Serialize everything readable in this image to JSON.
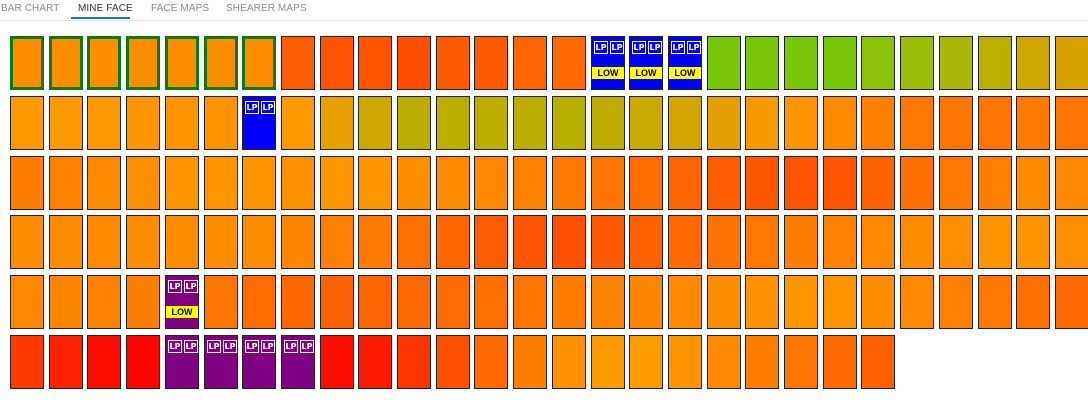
{
  "tabs": [
    {
      "label": "BAR CHART",
      "active": false
    },
    {
      "label": "MINE FACE",
      "active": true
    },
    {
      "label": "FACE MAPS",
      "active": false
    },
    {
      "label": "SHEARER MAPS",
      "active": false
    }
  ],
  "badges": {
    "lp": "LP",
    "low": "LOW"
  },
  "colors": {
    "selected_border": "#0a7a12",
    "blue_cell": "#0000ff",
    "purple_cell": "#7f0080",
    "low_badge": "#ffff00",
    "active_tab_underline": "#1a73c8"
  },
  "rows": [
    {
      "cells": [
        {
          "color": "#fe8d00",
          "selected": true
        },
        {
          "color": "#fe8d00",
          "selected": true
        },
        {
          "color": "#fe8d00",
          "selected": true
        },
        {
          "color": "#fe8d00",
          "selected": true
        },
        {
          "color": "#fe8d00",
          "selected": true
        },
        {
          "color": "#fe8d00",
          "selected": true
        },
        {
          "color": "#fe8d00",
          "selected": true
        },
        {
          "color": "#fe5c00"
        },
        {
          "color": "#fe5400"
        },
        {
          "color": "#fe5400"
        },
        {
          "color": "#fe4e00"
        },
        {
          "color": "#fe5a00"
        },
        {
          "color": "#fe5a00"
        },
        {
          "color": "#fe6400"
        },
        {
          "color": "#fe6a00"
        },
        {
          "color": "#0000ff",
          "status": "blue",
          "lp": true,
          "low": true
        },
        {
          "color": "#0000ff",
          "status": "blue",
          "lp": true,
          "low": true
        },
        {
          "color": "#0000ff",
          "status": "blue",
          "lp": true,
          "low": true
        },
        {
          "color": "#7ac70a"
        },
        {
          "color": "#7ac70a"
        },
        {
          "color": "#7ac70a"
        },
        {
          "color": "#7ac70a"
        },
        {
          "color": "#8cc20a"
        },
        {
          "color": "#9cbd0a"
        },
        {
          "color": "#aab70a"
        },
        {
          "color": "#bab000"
        },
        {
          "color": "#cca800"
        },
        {
          "color": "#d8a000"
        }
      ]
    },
    {
      "cells": [
        {
          "color": "#fe9a00"
        },
        {
          "color": "#fe9a00"
        },
        {
          "color": "#fe9800"
        },
        {
          "color": "#fe9600"
        },
        {
          "color": "#fe9400"
        },
        {
          "color": "#fe9400"
        },
        {
          "color": "#0000ff",
          "status": "blue",
          "lp": true
        },
        {
          "color": "#fe9a00"
        },
        {
          "color": "#e8a000"
        },
        {
          "color": "#cca800"
        },
        {
          "color": "#bcae00"
        },
        {
          "color": "#bcae00"
        },
        {
          "color": "#bcae00"
        },
        {
          "color": "#bcae00"
        },
        {
          "color": "#b8b000"
        },
        {
          "color": "#c0ac00"
        },
        {
          "color": "#c8aa00"
        },
        {
          "color": "#d4a400"
        },
        {
          "color": "#e4a000"
        },
        {
          "color": "#f49a00"
        },
        {
          "color": "#fe9400"
        },
        {
          "color": "#fe8a00"
        },
        {
          "color": "#fe8000"
        },
        {
          "color": "#fe7800"
        },
        {
          "color": "#fe7400"
        },
        {
          "color": "#fe7400"
        },
        {
          "color": "#fe7a00"
        },
        {
          "color": "#fe7400"
        }
      ]
    },
    {
      "cells": [
        {
          "color": "#fe7c00"
        },
        {
          "color": "#fe8200"
        },
        {
          "color": "#fe8a00"
        },
        {
          "color": "#fe9000"
        },
        {
          "color": "#fe9400"
        },
        {
          "color": "#fe9600"
        },
        {
          "color": "#fe9400"
        },
        {
          "color": "#fe9200"
        },
        {
          "color": "#fe9600"
        },
        {
          "color": "#fe9600"
        },
        {
          "color": "#fe8e00"
        },
        {
          "color": "#fe8a00"
        },
        {
          "color": "#fe8800"
        },
        {
          "color": "#fe8200"
        },
        {
          "color": "#fe7a00"
        },
        {
          "color": "#fe7400"
        },
        {
          "color": "#fe6c00"
        },
        {
          "color": "#fe6400"
        },
        {
          "color": "#fe5c00"
        },
        {
          "color": "#fe5600"
        },
        {
          "color": "#fe5400"
        },
        {
          "color": "#fe5400"
        },
        {
          "color": "#fe6200"
        },
        {
          "color": "#fe6e00"
        },
        {
          "color": "#fe7800"
        },
        {
          "color": "#fe8000"
        },
        {
          "color": "#fe8a00"
        },
        {
          "color": "#fe8800"
        }
      ]
    },
    {
      "cells": [
        {
          "color": "#fe8c00"
        },
        {
          "color": "#fe8c00"
        },
        {
          "color": "#fe8a00"
        },
        {
          "color": "#fe8c00"
        },
        {
          "color": "#fe8e00"
        },
        {
          "color": "#fe8e00"
        },
        {
          "color": "#fe8c00"
        },
        {
          "color": "#fe8600"
        },
        {
          "color": "#fe8000"
        },
        {
          "color": "#fe7a00"
        },
        {
          "color": "#fe7000"
        },
        {
          "color": "#fe6600"
        },
        {
          "color": "#fe5c00"
        },
        {
          "color": "#fe5600"
        },
        {
          "color": "#fe5000"
        },
        {
          "color": "#fe5800"
        },
        {
          "color": "#fe6000"
        },
        {
          "color": "#fe6a00"
        },
        {
          "color": "#fe7200"
        },
        {
          "color": "#fe7800"
        },
        {
          "color": "#fe7e00"
        },
        {
          "color": "#fe8200"
        },
        {
          "color": "#fe8800"
        },
        {
          "color": "#fe8c00"
        },
        {
          "color": "#fe9000"
        },
        {
          "color": "#fe9400"
        },
        {
          "color": "#fe9400"
        },
        {
          "color": "#fe9000"
        }
      ]
    },
    {
      "cells": [
        {
          "color": "#fe8800"
        },
        {
          "color": "#fe8600"
        },
        {
          "color": "#fe8200"
        },
        {
          "color": "#fe7e00"
        },
        {
          "color": "#7f0080",
          "status": "purple",
          "lp": true,
          "low": true
        },
        {
          "color": "#fe7400"
        },
        {
          "color": "#fe6c00"
        },
        {
          "color": "#fe6600"
        },
        {
          "color": "#fe6200"
        },
        {
          "color": "#fe6400"
        },
        {
          "color": "#fe6800"
        },
        {
          "color": "#fe6c00"
        },
        {
          "color": "#fe7000"
        },
        {
          "color": "#fe7600"
        },
        {
          "color": "#fe7c00"
        },
        {
          "color": "#fe8200"
        },
        {
          "color": "#fe8600"
        },
        {
          "color": "#fe8a00"
        },
        {
          "color": "#fe8e00"
        },
        {
          "color": "#fe9200"
        },
        {
          "color": "#fe9600"
        },
        {
          "color": "#fe9400"
        },
        {
          "color": "#fe8e00"
        },
        {
          "color": "#fe8800"
        },
        {
          "color": "#fe8000"
        },
        {
          "color": "#fe7800"
        },
        {
          "color": "#fe7000"
        },
        {
          "color": "#fe6800"
        }
      ]
    },
    {
      "cells": [
        {
          "color": "#fe3a00"
        },
        {
          "color": "#fe2200"
        },
        {
          "color": "#fe0e00"
        },
        {
          "color": "#fe0400"
        },
        {
          "color": "#7f0080",
          "status": "purple",
          "lp": true
        },
        {
          "color": "#7f0080",
          "status": "purple",
          "lp": true
        },
        {
          "color": "#7f0080",
          "status": "purple",
          "lp": true
        },
        {
          "color": "#7f0080",
          "status": "purple",
          "lp": true
        },
        {
          "color": "#fe0e00"
        },
        {
          "color": "#fe1a00"
        },
        {
          "color": "#fe3400"
        },
        {
          "color": "#fe5000"
        },
        {
          "color": "#fe6a00"
        },
        {
          "color": "#fe7e00"
        },
        {
          "color": "#fe9000"
        },
        {
          "color": "#fe9a00"
        },
        {
          "color": "#fe9c00"
        },
        {
          "color": "#fe9400"
        },
        {
          "color": "#fe8800"
        },
        {
          "color": "#fe7e00"
        },
        {
          "color": "#fe7400"
        },
        {
          "color": "#fe6a00"
        },
        {
          "color": "#fe6000"
        }
      ]
    }
  ]
}
